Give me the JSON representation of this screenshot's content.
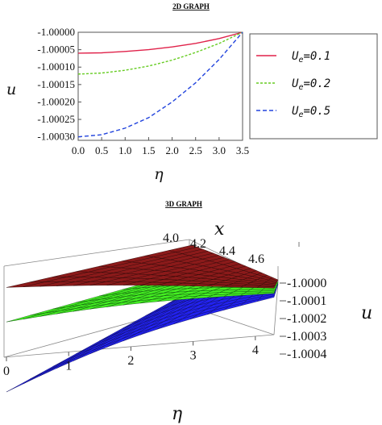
{
  "chart_data": [
    {
      "type": "line",
      "title": "2D GRAPH",
      "xlabel": "η",
      "ylabel": "u",
      "xlim": [
        0,
        3.5
      ],
      "ylim": [
        -1.00031,
        -1.0
      ],
      "x_ticks": [
        "0.0",
        "0.5",
        "1.0",
        "1.5",
        "2.0",
        "2.5",
        "3.0",
        "3.5"
      ],
      "y_ticks": [
        "-1.00000",
        "-1.00005",
        "-1.00010",
        "-1.00015",
        "-1.00020",
        "-1.00025",
        "-1.00030"
      ],
      "legend_position": "right",
      "series": [
        {
          "name": "U_e=0.1",
          "legend_main": "U",
          "legend_sub": "e",
          "legend_rest": "=0.1",
          "color": "#e0224a",
          "dash": "solid",
          "x": [
            0,
            0.5,
            1.0,
            1.5,
            2.0,
            2.5,
            3.0,
            3.5
          ],
          "y": [
            -1.00006,
            -1.000059,
            -1.000055,
            -1.00005,
            -1.000042,
            -1.000032,
            -1.000018,
            -1.0
          ]
        },
        {
          "name": "U_e=0.2",
          "legend_main": "U",
          "legend_sub": "e",
          "legend_rest": "=0.2",
          "color": "#66cc22",
          "dash": "dotted",
          "x": [
            0,
            0.5,
            1.0,
            1.5,
            2.0,
            2.5,
            3.0,
            3.5
          ],
          "y": [
            -1.00012,
            -1.000117,
            -1.000109,
            -1.000097,
            -1.00008,
            -1.000058,
            -1.000032,
            -1.0
          ]
        },
        {
          "name": "U_e=0.5",
          "legend_main": "U",
          "legend_sub": "e",
          "legend_rest": "=0.5",
          "color": "#2244dd",
          "dash": "dashed",
          "x": [
            0,
            0.5,
            1.0,
            1.5,
            2.0,
            2.5,
            3.0,
            3.5
          ],
          "y": [
            -1.0003,
            -1.000294,
            -1.000275,
            -1.000245,
            -1.0002,
            -1.000145,
            -1.000078,
            -1.0
          ]
        }
      ]
    },
    {
      "type": "surface",
      "title": "3D GRAPH",
      "xlabel": "η",
      "ylabel": "x",
      "zlabel": "u",
      "eta_ticks": [
        "0",
        "1",
        "2",
        "3",
        "4"
      ],
      "x_ticks": [
        "4.0",
        "4.2",
        "4.4",
        "4.6"
      ],
      "z_ticks": [
        "-1.0000",
        "-1.0001",
        "-1.0002",
        "-1.0003",
        "-1.0004"
      ],
      "eta_range": [
        0,
        4.3
      ],
      "x_range": [
        4.0,
        4.7
      ],
      "z_range": [
        -1.0004,
        -1.0
      ],
      "surfaces": [
        {
          "name": "U_e=0.1",
          "color": "#8b1a1a"
        },
        {
          "name": "U_e=0.2",
          "color": "#44ee22"
        },
        {
          "name": "U_e=0.5",
          "color": "#2222ee"
        }
      ]
    }
  ]
}
